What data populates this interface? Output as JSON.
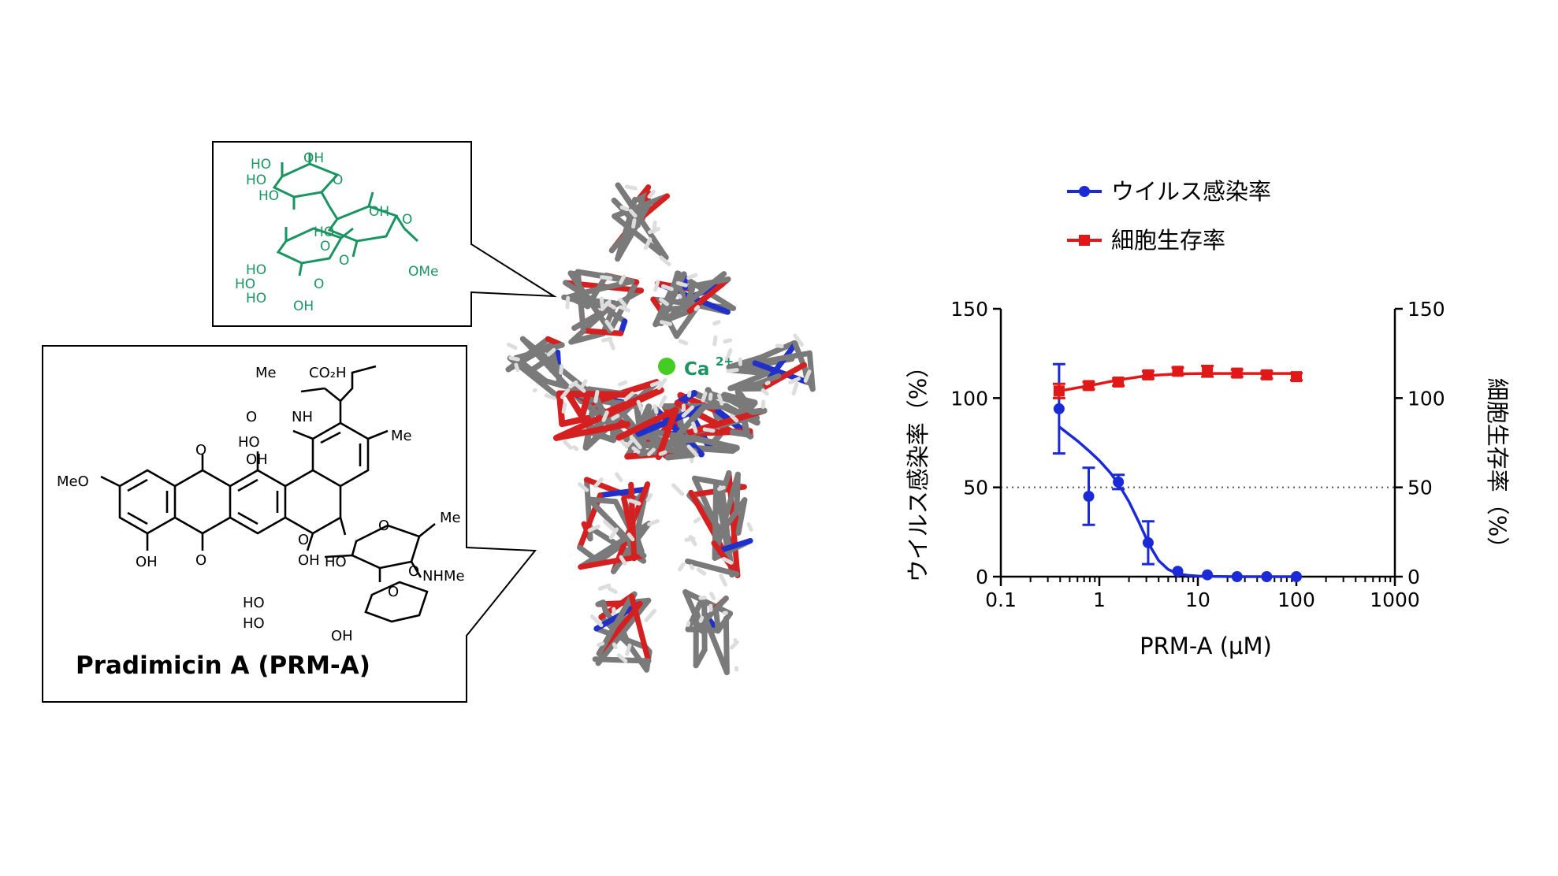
{
  "callouts": {
    "sugar": {
      "labels": [
        "HO",
        "OH",
        "HO",
        "HO",
        "O",
        "OH",
        "HO",
        "O",
        "O",
        "HO",
        "O",
        "HO",
        "HO",
        "O",
        "OH",
        "OMe"
      ],
      "color": "#1a9460"
    },
    "prma": {
      "labels": [
        "Me",
        "CO₂H",
        "O",
        "NH",
        "HO",
        "Me",
        "O",
        "OH",
        "MeO",
        "O",
        "OH",
        "O",
        "OH",
        "Me",
        "HO",
        "O",
        "NHMe",
        "O",
        "HO",
        "O",
        "HO",
        "OH"
      ],
      "title": "Pradimicin A (PRM-A)"
    }
  },
  "molecule": {
    "ion_label": "Ca",
    "ion_charge": "2+",
    "ion_color": "#44cc22",
    "label_color": "#1a9460",
    "atom_colors": {
      "carbon": "#7a7a7a",
      "oxygen": "#d42020",
      "nitrogen": "#2030c8",
      "hydrogen": "#dddddd"
    }
  },
  "chart_data": {
    "type": "line",
    "xscale": "log",
    "xlim": [
      0.1,
      1000
    ],
    "ylim": [
      0,
      150
    ],
    "xticks": [
      "0.1",
      "1",
      "10",
      "100",
      "1000"
    ],
    "yticks_left": [
      "0",
      "50",
      "100",
      "150"
    ],
    "yticks_right": [
      "0",
      "50",
      "100",
      "150"
    ],
    "xlabel": "PRM-A (μM)",
    "ylabel_left": "ウイルス感染率（%）",
    "ylabel_right": "細胞生存率（%）",
    "reference_line_y": 50,
    "legend_position": "top",
    "series": [
      {
        "name": "ウイルス感染率",
        "color": "#1a2ad6",
        "marker": "circle",
        "x": [
          0.39,
          0.78,
          1.56,
          3.13,
          6.25,
          12.5,
          25,
          50,
          100
        ],
        "y": [
          94,
          45,
          53,
          19,
          3,
          1,
          0,
          0,
          0
        ],
        "err": [
          25,
          16,
          4,
          12,
          0,
          0,
          0,
          0,
          0
        ],
        "fit_x": [
          0.39,
          0.6,
          0.8,
          1.0,
          1.3,
          1.6,
          2.0,
          2.5,
          3.2,
          4.0,
          5.0,
          6.3,
          8.0,
          10,
          16,
          25,
          50,
          100
        ],
        "fit_y": [
          84,
          76,
          70,
          65,
          58,
          51,
          42,
          31,
          18,
          9,
          4,
          1.5,
          0.7,
          0.3,
          0.1,
          0,
          0,
          0
        ]
      },
      {
        "name": "細胞生存率",
        "color": "#e01818",
        "marker": "square",
        "x": [
          0.39,
          0.78,
          1.56,
          3.13,
          6.25,
          12.5,
          25,
          50,
          100
        ],
        "y": [
          104,
          107,
          109,
          113,
          115,
          115,
          114,
          113,
          112
        ],
        "err": [
          4,
          2,
          2,
          2,
          2,
          3,
          2,
          2,
          2
        ],
        "fit_x": [
          0.39,
          0.8,
          1.5,
          3.0,
          6.0,
          12,
          25,
          50,
          100
        ],
        "fit_y": [
          104,
          107,
          110,
          112.5,
          113.5,
          113.8,
          113.8,
          113.8,
          113.8
        ]
      }
    ]
  }
}
